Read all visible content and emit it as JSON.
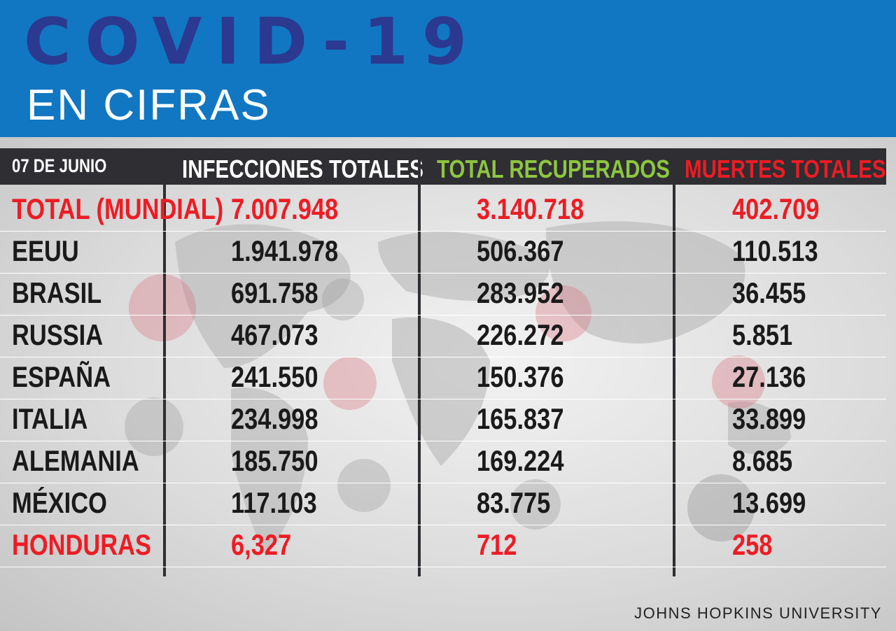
{
  "header": {
    "title": "COVID-19",
    "subtitle": "EN CIFRAS"
  },
  "colors": {
    "header_bg": "#1177c2",
    "title": "#2b3990",
    "table_header_bg": "#2e2e33",
    "infections_header": "#ffffff",
    "recovered_header": "#8dc63f",
    "deaths_header": "#ed1c24",
    "highlight_red": "#ed1c24",
    "body_text": "#1a1a1a"
  },
  "chart_data": {
    "type": "table",
    "date_label": "07 DE JUNIO",
    "columns": [
      "INFECCIONES TOTALES",
      "TOTAL RECUPERADOS",
      "MUERTES TOTALES"
    ],
    "rows": [
      {
        "country": "TOTAL (MUNDIAL)",
        "infections": "7.007.948",
        "recovered": "3.140.718",
        "deaths": "402.709",
        "highlight": true
      },
      {
        "country": "EEUU",
        "infections": "1.941.978",
        "recovered": "506.367",
        "deaths": "110.513",
        "highlight": false
      },
      {
        "country": "BRASIL",
        "infections": "691.758",
        "recovered": "283.952",
        "deaths": "36.455",
        "highlight": false
      },
      {
        "country": "RUSSIA",
        "infections": "467.073",
        "recovered": "226.272",
        "deaths": "5.851",
        "highlight": false
      },
      {
        "country": "ESPAÑA",
        "infections": "241.550",
        "recovered": "150.376",
        "deaths": "27.136",
        "highlight": false
      },
      {
        "country": "ITALIA",
        "infections": "234.998",
        "recovered": "165.837",
        "deaths": "33.899",
        "highlight": false
      },
      {
        "country": "ALEMANIA",
        "infections": "185.750",
        "recovered": "169.224",
        "deaths": "8.685",
        "highlight": false
      },
      {
        "country": "MÉXICO",
        "infections": "117.103",
        "recovered": "83.775",
        "deaths": "13.699",
        "highlight": false
      },
      {
        "country": "HONDURAS",
        "infections": "6,327",
        "recovered": "712",
        "deaths": "258",
        "highlight": true
      }
    ]
  },
  "source": "JOHNS HOPKINS UNIVERSITY"
}
